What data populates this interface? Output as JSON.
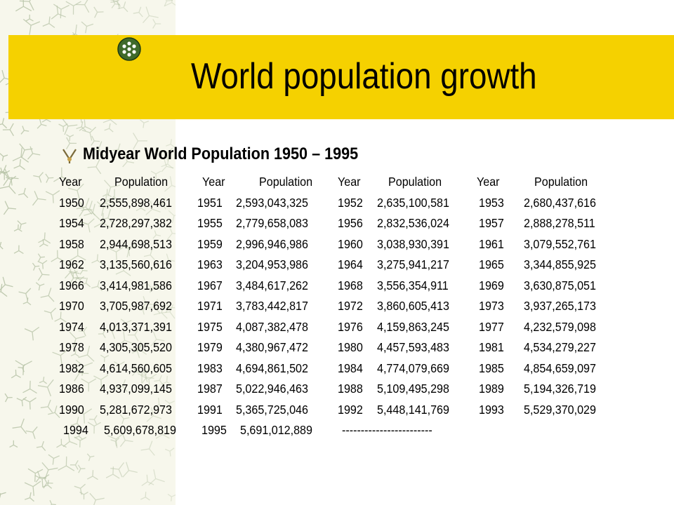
{
  "slide": {
    "title": "World population growth",
    "subtitle": "Midyear World Population 1950 – 1995",
    "headers": [
      "Year",
      "Population",
      "Year",
      "Population",
      "Year",
      "Population",
      "Year",
      "Population"
    ],
    "rows": [
      [
        "1950",
        "2,555,898,461",
        "1951",
        "2,593,043,325",
        "1952",
        "2,635,100,581",
        "1953",
        "2,680,437,616"
      ],
      [
        "1954",
        "2,728,297,382",
        "1955",
        "2,779,658,083",
        "1956",
        "2,832,536,024",
        "1957",
        "2,888,278,511"
      ],
      [
        "1958",
        "2,944,698,513",
        "1959",
        "2,996,946,986",
        "1960",
        "3,038,930,391",
        "1961",
        "3,079,552,761"
      ],
      [
        "1962",
        "3,135,560,616",
        "1963",
        "3,204,953,986",
        "1964",
        "3,275,941,217",
        "1965",
        "3,344,855,925"
      ],
      [
        "1966",
        "3,414,981,586",
        "1967",
        "3,484,617,262",
        "1968",
        "3,556,354,911",
        "1969",
        "3,630,875,051"
      ],
      [
        "1970",
        "3,705,987,692",
        "1971",
        "3,783,442,817",
        "1972",
        "3,860,605,413",
        "1973",
        "3,937,265,173"
      ],
      [
        "1974",
        "4,013,371,391",
        "1975",
        "4,087,382,478",
        "1976",
        "4,159,863,245",
        "1977",
        "4,232,579,098"
      ],
      [
        "1978",
        "4,305,305,520",
        "1979",
        "4,380,967,472",
        "1980",
        "4,457,593,483",
        "1981",
        "4,534,279,227"
      ],
      [
        "1982",
        "4,614,560,605",
        "1983",
        "4,694,861,502",
        "1984",
        "4,774,079,669",
        "1985",
        "4,854,659,097"
      ],
      [
        "1986",
        "4,937,099,145",
        "1987",
        "5,022,946,463",
        "1988",
        "5,109,495,298",
        "1989",
        "5,194,326,719"
      ],
      [
        "1990",
        "5,281,672,973",
        "1991",
        "5,365,725,046",
        "1992",
        "5,448,141,769",
        "1993",
        "5,529,370,029"
      ],
      [
        "1994",
        "5,609,678,819",
        "1995",
        "5,691,012,889",
        "------------------------",
        "",
        "",
        ""
      ]
    ]
  },
  "colors": {
    "title_bar": "#f5d100",
    "texture_bg": "#f7f7ec",
    "texture_marks": "#b8c4a8",
    "logo_ring": "#3f6a2a",
    "bullet": "#c8a24a"
  }
}
